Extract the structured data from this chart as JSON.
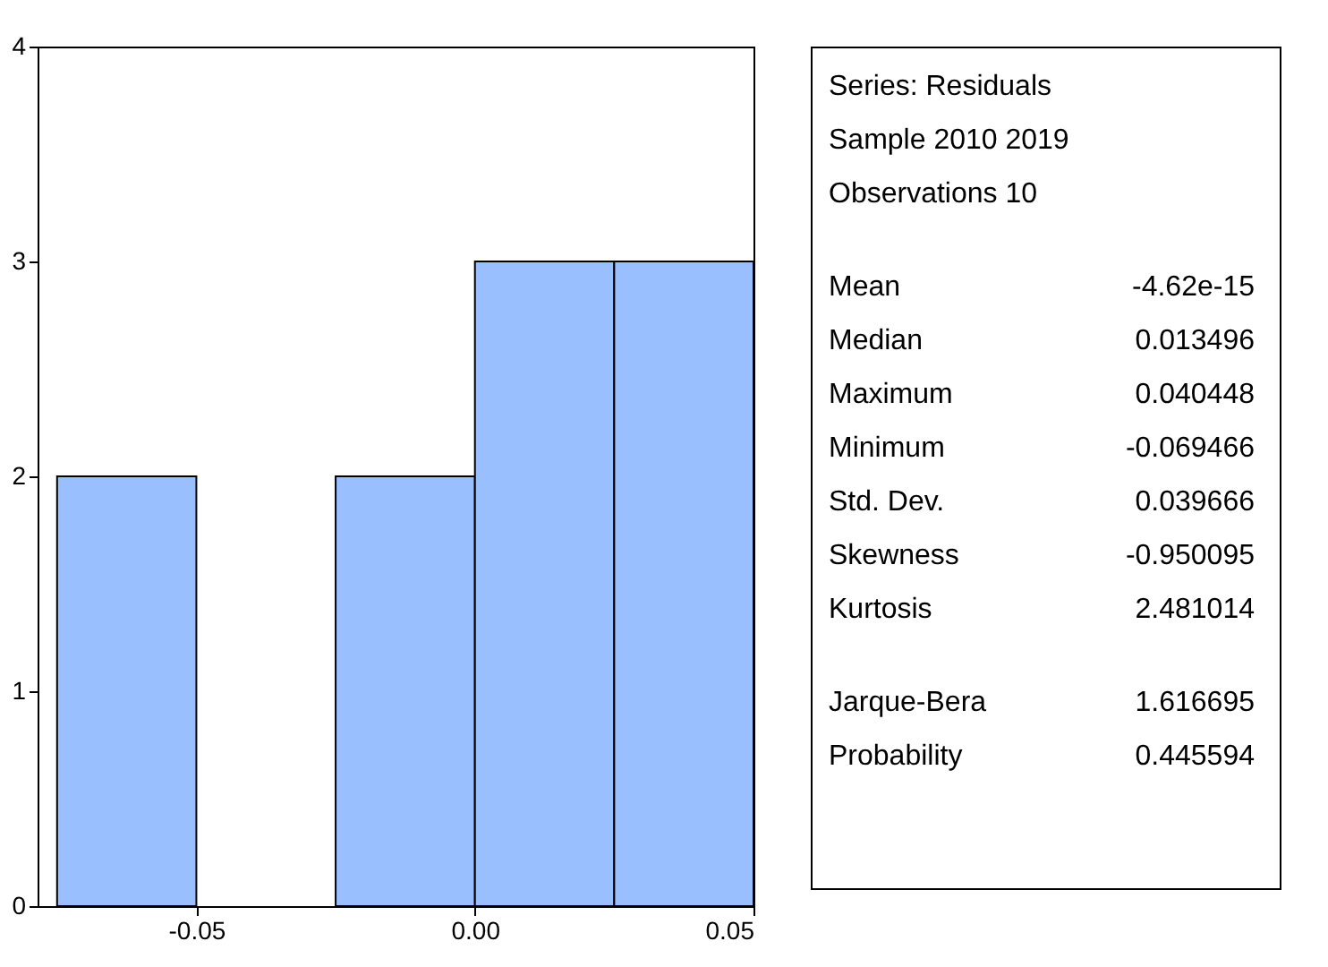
{
  "chart_data": {
    "type": "histogram",
    "bins": [
      -0.075,
      -0.05,
      -0.025,
      0.0,
      0.025,
      0.05
    ],
    "values": [
      2,
      0,
      2,
      3,
      3
    ],
    "color": "#9abfff",
    "xlim": [
      -0.0785,
      0.05
    ],
    "xticks": [
      {
        "value": -0.05,
        "label": "-0.05"
      },
      {
        "value": 0,
        "label": "0.00"
      },
      {
        "value": 0.05,
        "label": "0.05"
      }
    ],
    "ylim": [
      0,
      4
    ],
    "yticks": [
      0,
      1,
      2,
      3,
      4
    ],
    "grid": false,
    "annotations": [
      "Series: Residuals",
      "Sample 2010 2019",
      "Observations 10",
      "Mean\t-4.62e-15",
      "Median\t0.013496",
      "Maximum\t0.040448",
      "Minimum\t-0.069466",
      "Std. Dev.\t0.039666",
      "Skewness\t-0.950095",
      "Kurtosis\t2.481014",
      "Jarque-Bera\t1.616695",
      "Probability\t0.445594"
    ]
  }
}
